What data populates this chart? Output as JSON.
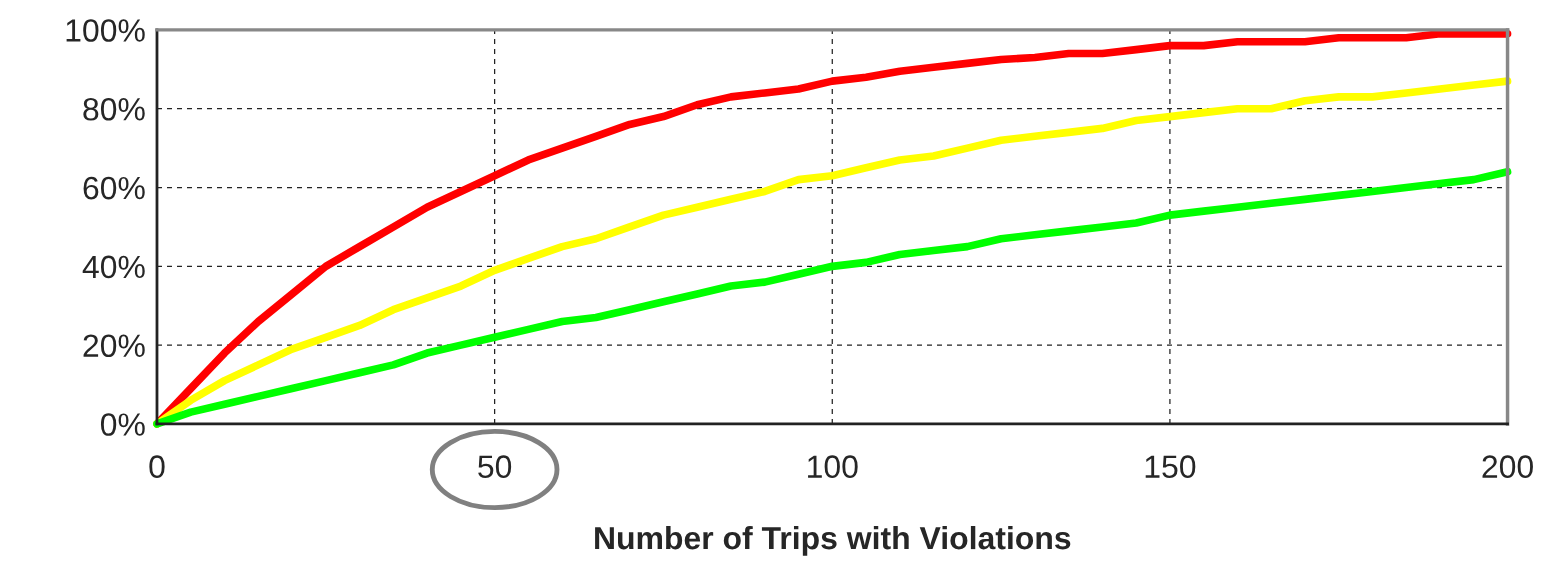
{
  "chart_data": {
    "type": "line",
    "xlabel": "Number of Trips with Violations",
    "x": [
      0,
      5,
      10,
      15,
      20,
      25,
      30,
      35,
      40,
      45,
      50,
      55,
      60,
      65,
      70,
      75,
      80,
      85,
      90,
      95,
      100,
      105,
      110,
      115,
      120,
      125,
      130,
      135,
      140,
      145,
      150,
      155,
      160,
      165,
      170,
      175,
      180,
      185,
      190,
      195,
      200
    ],
    "series": [
      {
        "color": "#ff0000",
        "values": [
          0,
          9,
          18,
          26,
          33,
          40,
          45,
          50,
          55,
          59,
          63,
          67,
          70,
          73,
          76,
          78,
          81,
          83,
          84,
          85,
          87,
          88,
          89.5,
          90.5,
          91.5,
          92.5,
          93,
          94,
          94,
          95,
          96,
          96,
          97,
          97,
          97,
          98,
          98,
          98,
          99,
          99,
          99
        ]
      },
      {
        "color": "#ffff00",
        "values": [
          0,
          6,
          11,
          15,
          19,
          22,
          25,
          29,
          32,
          35,
          39,
          42,
          45,
          47,
          50,
          53,
          55,
          57,
          59,
          62,
          63,
          65,
          67,
          68,
          70,
          72,
          73,
          74,
          75,
          77,
          78,
          79,
          80,
          80,
          82,
          83,
          83,
          84,
          85,
          86,
          87
        ]
      },
      {
        "color": "#00ff00",
        "values": [
          0,
          3,
          5,
          7,
          9,
          11,
          13,
          15,
          18,
          20,
          22,
          24,
          26,
          27,
          29,
          31,
          33,
          35,
          36,
          38,
          40,
          41,
          43,
          44,
          45,
          47,
          48,
          49,
          50,
          51,
          53,
          54,
          55,
          56,
          57,
          58,
          59,
          60,
          61,
          62,
          64
        ]
      }
    ],
    "xlim": [
      0,
      200
    ],
    "xticks": [
      0,
      50,
      100,
      150,
      200
    ],
    "ylim": [
      0,
      100
    ],
    "yticks": [
      {
        "value": 0,
        "label": "0%"
      },
      {
        "value": 20,
        "label": "20%"
      },
      {
        "value": 40,
        "label": "40%"
      },
      {
        "value": 60,
        "label": "60%"
      },
      {
        "value": 80,
        "label": "80%"
      },
      {
        "value": 100,
        "label": "100%"
      }
    ],
    "grid": true,
    "marker": "none",
    "line_style": "solid"
  }
}
